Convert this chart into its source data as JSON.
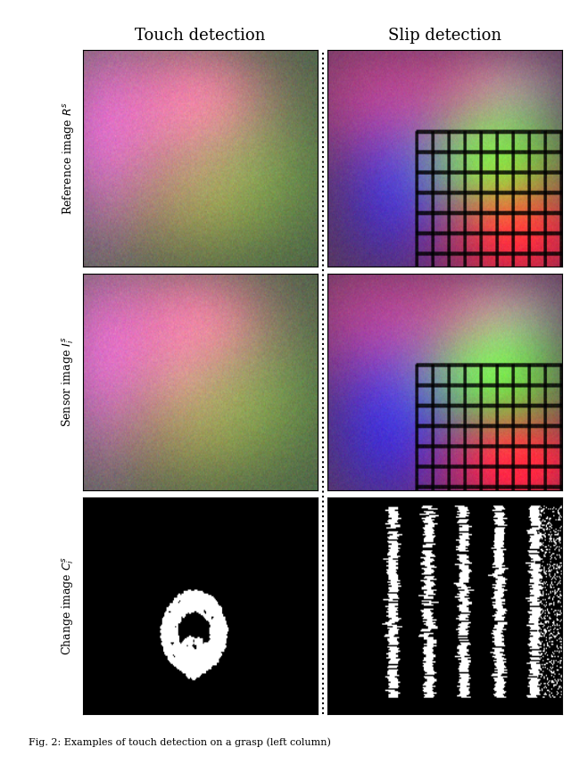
{
  "title_left": "Touch detection",
  "title_right": "Slip detection",
  "row_labels": [
    "Reference image $R^s$",
    "Sensor image $I_i^s$",
    "Change image $C_i^s$"
  ],
  "figsize": [
    6.4,
    8.57
  ],
  "dpi": 100,
  "bg_color": "#ffffff",
  "border_color": "#000000",
  "divider_color": "#000000",
  "caption": "Fig. 2: Examples of touch detection on a grasp (left column)",
  "title_fontsize": 13,
  "label_fontsize": 9
}
